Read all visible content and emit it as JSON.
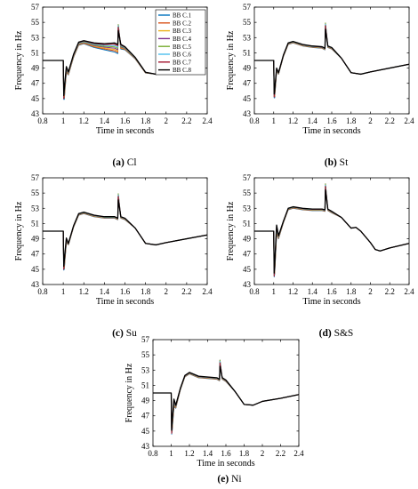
{
  "legend": {
    "entries": [
      "BB C.1",
      "BB C.2",
      "BB C.3",
      "BB C.4",
      "BB C.5",
      "BB C.6",
      "BB C.7",
      "BB C.8"
    ],
    "colors": [
      "#0072BD",
      "#D95319",
      "#EDB120",
      "#7E2F8E",
      "#77AC30",
      "#4DBEEE",
      "#A2142F",
      "#000000"
    ],
    "placement": "top-right (panel a only)"
  },
  "chart_data": [
    {
      "type": "line",
      "panel_letter": "(a)",
      "panel_name": "Cl",
      "xlabel": "Time in seconds",
      "ylabel": "Frequency in Hz",
      "xlim": [
        0.8,
        2.4
      ],
      "ylim": [
        43,
        57
      ],
      "xticks": [
        0.8,
        1,
        1.2,
        1.4,
        1.6,
        1.8,
        2,
        2.2,
        2.4
      ],
      "yticks": [
        43,
        45,
        47,
        49,
        51,
        53,
        55,
        57
      ],
      "show_legend": true,
      "spike": {
        "x": 1.535,
        "peak": 54.8
      },
      "dip": {
        "x": 1.01,
        "min": 44.9
      },
      "x": [
        0.8,
        1.0,
        1.01,
        1.03,
        1.05,
        1.1,
        1.15,
        1.2,
        1.3,
        1.4,
        1.5,
        1.53,
        1.56,
        1.6,
        1.7,
        1.8,
        1.9,
        2.0,
        2.1
      ],
      "series_y": [
        50.0,
        50.0,
        45.6,
        48.8,
        48.3,
        50.6,
        52.2,
        52.4,
        52.0,
        51.8,
        51.7,
        51.5,
        51.8,
        51.6,
        50.3,
        48.4,
        48.2,
        48.3,
        48.8
      ],
      "spread": [
        0,
        0,
        0.7,
        0.4,
        0.2,
        0.2,
        0.2,
        0.2,
        0.3,
        0.4,
        0.6,
        0.6,
        0.3,
        0.2,
        0.1,
        0.05,
        0,
        0,
        0
      ]
    },
    {
      "type": "line",
      "panel_letter": "(b)",
      "panel_name": "St",
      "xlabel": "Time in seconds",
      "ylabel": "Frequency in Hz",
      "xlim": [
        0.8,
        2.4
      ],
      "ylim": [
        43,
        57
      ],
      "xticks": [
        0.8,
        1,
        1.2,
        1.4,
        1.6,
        1.8,
        2,
        2.2,
        2.4
      ],
      "yticks": [
        43,
        45,
        47,
        49,
        51,
        53,
        55,
        57
      ],
      "show_legend": false,
      "spike": {
        "x": 1.535,
        "peak": 55.0
      },
      "dip": {
        "x": 1.01,
        "min": 45.1
      },
      "x": [
        0.8,
        1.0,
        1.01,
        1.03,
        1.05,
        1.1,
        1.15,
        1.2,
        1.3,
        1.4,
        1.5,
        1.53,
        1.56,
        1.6,
        1.7,
        1.8,
        1.9,
        2.0,
        2.2,
        2.4
      ],
      "series_y": [
        50.0,
        50.0,
        45.6,
        48.8,
        48.3,
        50.6,
        52.2,
        52.4,
        52.0,
        51.8,
        51.7,
        51.5,
        51.8,
        51.6,
        50.3,
        48.4,
        48.2,
        48.5,
        49.0,
        49.5
      ],
      "spread": [
        0,
        0,
        0.5,
        0.2,
        0.1,
        0.1,
        0.1,
        0.1,
        0.1,
        0.1,
        0.1,
        0.1,
        0.1,
        0.1,
        0,
        0,
        0,
        0,
        0,
        0
      ]
    },
    {
      "type": "line",
      "panel_letter": "(c)",
      "panel_name": "Su",
      "xlabel": "Time in seconds",
      "ylabel": "Frequency in Hz",
      "xlim": [
        0.8,
        2.4
      ],
      "ylim": [
        43,
        57
      ],
      "xticks": [
        0.8,
        1,
        1.2,
        1.4,
        1.6,
        1.8,
        2,
        2.2,
        2.4
      ],
      "yticks": [
        43,
        45,
        47,
        49,
        51,
        53,
        55,
        57
      ],
      "show_legend": false,
      "spike": {
        "x": 1.535,
        "peak": 55.0
      },
      "dip": {
        "x": 1.01,
        "min": 44.9
      },
      "x": [
        0.8,
        1.0,
        1.01,
        1.03,
        1.05,
        1.1,
        1.15,
        1.2,
        1.3,
        1.4,
        1.5,
        1.53,
        1.56,
        1.6,
        1.7,
        1.8,
        1.9,
        2.0,
        2.2,
        2.4
      ],
      "series_y": [
        50.0,
        50.0,
        45.6,
        48.8,
        48.3,
        50.6,
        52.2,
        52.4,
        52.0,
        51.8,
        51.8,
        51.6,
        51.8,
        51.6,
        50.4,
        48.4,
        48.2,
        48.5,
        49.0,
        49.5
      ],
      "spread": [
        0,
        0,
        0.6,
        0.3,
        0.1,
        0.1,
        0.1,
        0.1,
        0.1,
        0.1,
        0.1,
        0.1,
        0.1,
        0.1,
        0,
        0,
        0,
        0,
        0,
        0
      ]
    },
    {
      "type": "line",
      "panel_letter": "(d)",
      "panel_name": "S&S",
      "xlabel": "Time in seconds",
      "ylabel": "Frequency in Hz",
      "xlim": [
        0.8,
        2.4
      ],
      "ylim": [
        43,
        57
      ],
      "xticks": [
        0.8,
        1,
        1.2,
        1.4,
        1.6,
        1.8,
        2,
        2.2,
        2.4
      ],
      "yticks": [
        43,
        45,
        47,
        49,
        51,
        53,
        55,
        57
      ],
      "show_legend": false,
      "spike": {
        "x": 1.535,
        "peak": 56.3
      },
      "dip": {
        "x": 1.01,
        "min": 44.0
      },
      "x": [
        0.8,
        1.0,
        1.01,
        1.03,
        1.05,
        1.1,
        1.15,
        1.2,
        1.3,
        1.4,
        1.5,
        1.53,
        1.56,
        1.6,
        1.7,
        1.8,
        1.85,
        1.9,
        2.0,
        2.05,
        2.1,
        2.2,
        2.4
      ],
      "series_y": [
        50.0,
        50.0,
        45.0,
        50.2,
        49.2,
        51.2,
        52.9,
        53.1,
        52.9,
        52.8,
        52.8,
        52.7,
        52.8,
        52.5,
        51.8,
        50.4,
        50.5,
        50.0,
        48.5,
        47.6,
        47.4,
        47.8,
        48.4
      ],
      "spread": [
        0,
        0,
        0.6,
        0.6,
        0.2,
        0.1,
        0.1,
        0.1,
        0.1,
        0.1,
        0.1,
        0.1,
        0.1,
        0.1,
        0,
        0,
        0,
        0,
        0,
        0,
        0,
        0,
        0
      ]
    },
    {
      "type": "line",
      "panel_letter": "(e)",
      "panel_name": "Ni",
      "xlabel": "Time in seconds",
      "ylabel": "Frequency in Hz",
      "xlim": [
        0.8,
        2.4
      ],
      "ylim": [
        43,
        57
      ],
      "xticks": [
        0.8,
        1,
        1.2,
        1.4,
        1.6,
        1.8,
        2,
        2.2,
        2.4
      ],
      "yticks": [
        43,
        45,
        47,
        49,
        51,
        53,
        55,
        57
      ],
      "show_legend": false,
      "spike": {
        "x": 1.535,
        "peak": 54.4
      },
      "dip": {
        "x": 1.01,
        "min": 44.6
      },
      "x": [
        0.8,
        1.0,
        1.01,
        1.03,
        1.05,
        1.1,
        1.15,
        1.2,
        1.3,
        1.4,
        1.5,
        1.53,
        1.56,
        1.6,
        1.7,
        1.8,
        1.9,
        2.0,
        2.2,
        2.4
      ],
      "series_y": [
        50.0,
        50.0,
        45.6,
        48.7,
        48.2,
        50.5,
        52.2,
        52.6,
        52.1,
        52.0,
        51.9,
        51.7,
        51.9,
        51.6,
        50.2,
        48.5,
        48.4,
        48.9,
        49.3,
        49.8
      ],
      "spread": [
        0,
        0,
        0.6,
        0.5,
        0.2,
        0.1,
        0.1,
        0.1,
        0.1,
        0.1,
        0.1,
        0.1,
        0.1,
        0.1,
        0,
        0,
        0,
        0,
        0,
        0
      ]
    }
  ]
}
